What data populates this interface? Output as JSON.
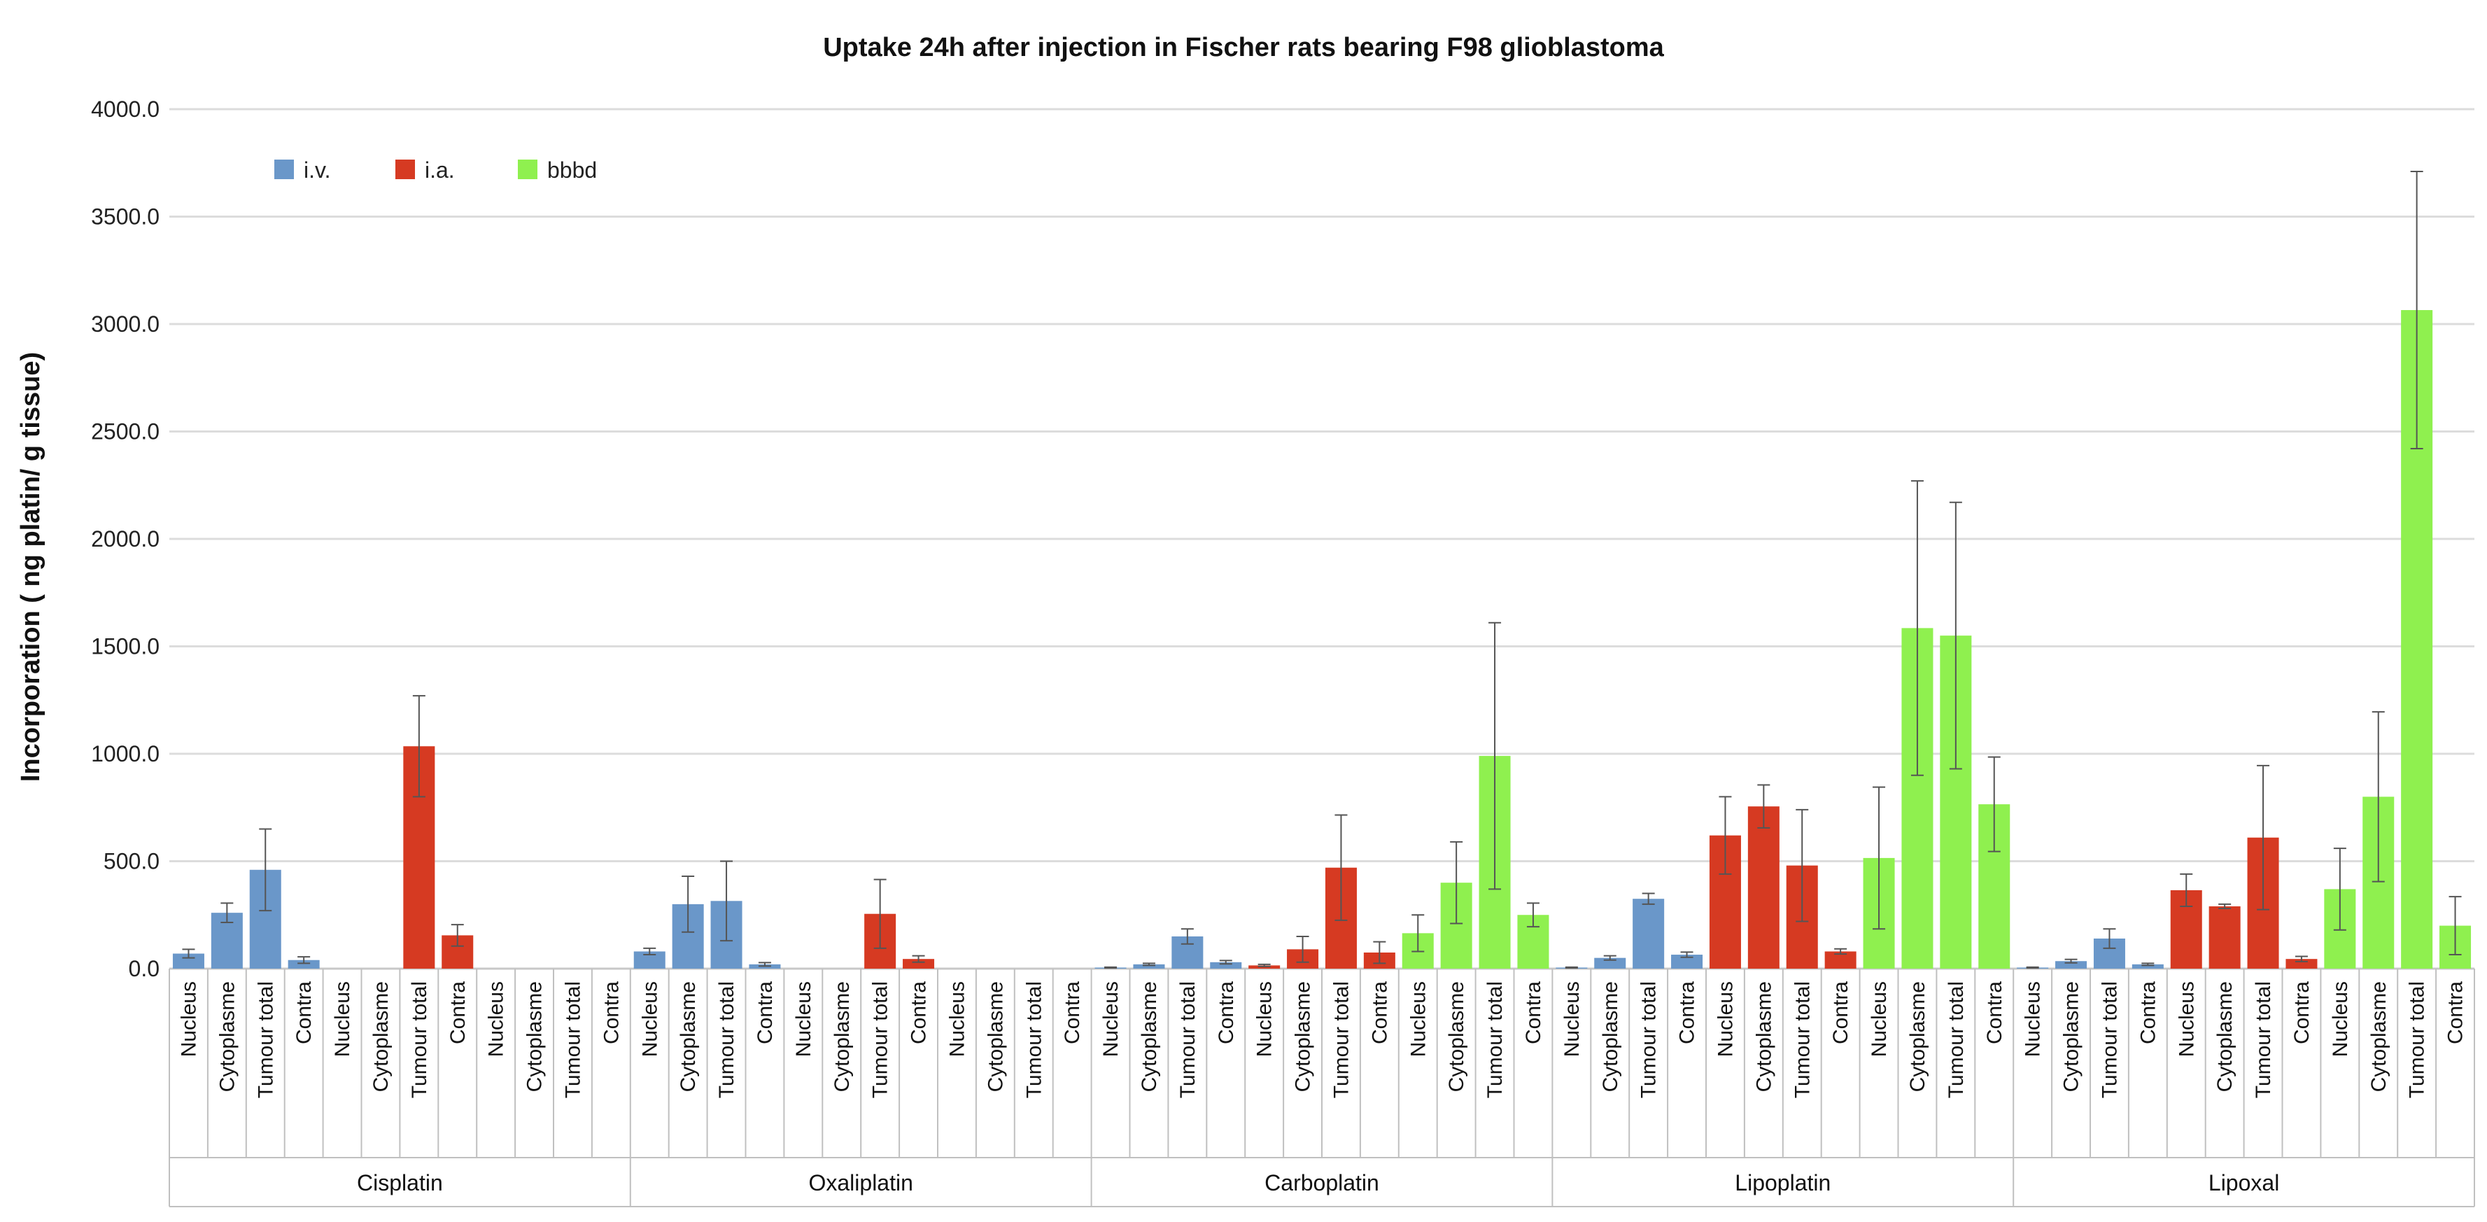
{
  "chart_data": {
    "type": "bar",
    "title": "Uptake 24h after injection in Fischer rats bearing F98 glioblastoma",
    "ylabel": "Incorporation ( ng platin/ g tissue)",
    "xlabel": "",
    "ylim": [
      0,
      4000
    ],
    "yticks": [
      {
        "value": 0,
        "label": "0.0"
      },
      {
        "value": 500,
        "label": "500.0"
      },
      {
        "value": 1000,
        "label": "1000.0"
      },
      {
        "value": 1500,
        "label": "1500.0"
      },
      {
        "value": 2000,
        "label": "2000.0"
      },
      {
        "value": 2500,
        "label": "2500.0"
      },
      {
        "value": 3000,
        "label": "3000.0"
      },
      {
        "value": 3500,
        "label": "3500.0"
      },
      {
        "value": 4000,
        "label": "4000.0"
      }
    ],
    "grid": true,
    "legend_position": "top-left",
    "colors": {
      "i.v.": "#6a97c9",
      "i.a.": "#d63a22",
      "bbbd": "#8ff04f"
    },
    "series_names": [
      "i.v.",
      "i.a.",
      "bbbd"
    ],
    "compartments": [
      "Nucleus",
      "Cytoplasme",
      "Tumour total",
      "Contra"
    ],
    "groups": [
      {
        "drug": "Cisplatin",
        "series": [
          {
            "name": "i.v.",
            "values": [
              70,
              260,
              460,
              40
            ],
            "errors": [
              20,
              45,
              190,
              15
            ]
          },
          {
            "name": "i.a.",
            "values": [
              0,
              0,
              1035,
              155
            ],
            "errors": [
              0,
              0,
              235,
              50
            ]
          },
          {
            "name": "bbbd",
            "values": [
              0,
              0,
              0,
              0
            ],
            "errors": [
              0,
              0,
              0,
              0
            ]
          }
        ]
      },
      {
        "drug": "Oxaliplatin",
        "series": [
          {
            "name": "i.v.",
            "values": [
              80,
              300,
              315,
              20
            ],
            "errors": [
              15,
              130,
              185,
              8
            ]
          },
          {
            "name": "i.a.",
            "values": [
              0,
              0,
              255,
              45
            ],
            "errors": [
              0,
              0,
              160,
              15
            ]
          },
          {
            "name": "bbbd",
            "values": [
              0,
              0,
              0,
              0
            ],
            "errors": [
              0,
              0,
              0,
              0
            ]
          }
        ]
      },
      {
        "drug": "Carboplatin",
        "series": [
          {
            "name": "i.v.",
            "values": [
              5,
              20,
              150,
              30
            ],
            "errors": [
              2,
              5,
              35,
              8
            ]
          },
          {
            "name": "i.a.",
            "values": [
              15,
              90,
              470,
              75
            ],
            "errors": [
              5,
              60,
              245,
              50
            ]
          },
          {
            "name": "bbbd",
            "values": [
              165,
              400,
              990,
              250
            ],
            "errors": [
              85,
              190,
              620,
              55
            ]
          }
        ]
      },
      {
        "drug": "Lipoplatin",
        "series": [
          {
            "name": "i.v.",
            "values": [
              5,
              50,
              325,
              65
            ],
            "errors": [
              2,
              10,
              25,
              12
            ]
          },
          {
            "name": "i.a.",
            "values": [
              620,
              755,
              480,
              80
            ],
            "errors": [
              180,
              100,
              260,
              12
            ]
          },
          {
            "name": "bbbd",
            "values": [
              515,
              1585,
              1550,
              765
            ],
            "errors": [
              330,
              685,
              620,
              220
            ]
          }
        ]
      },
      {
        "drug": "Lipoxal",
        "series": [
          {
            "name": "i.v.",
            "values": [
              5,
              35,
              140,
              20
            ],
            "errors": [
              2,
              8,
              45,
              5
            ]
          },
          {
            "name": "i.a.",
            "values": [
              365,
              290,
              610,
              45
            ],
            "errors": [
              75,
              10,
              335,
              12
            ]
          },
          {
            "name": "bbbd",
            "values": [
              370,
              800,
              3065,
              200
            ],
            "errors": [
              190,
              395,
              645,
              135
            ]
          }
        ]
      }
    ]
  }
}
